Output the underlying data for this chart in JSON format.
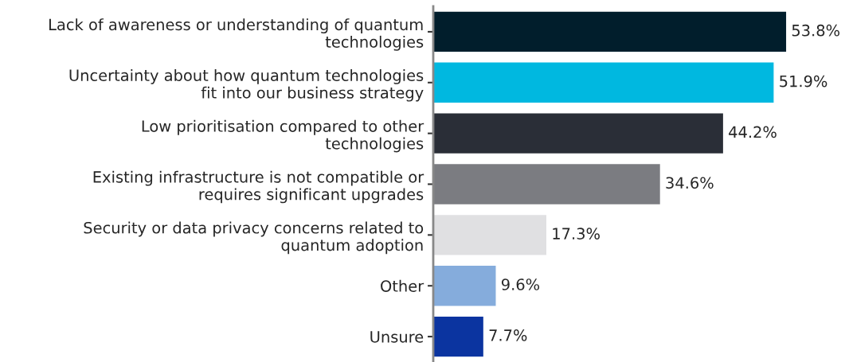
{
  "chart_data": {
    "type": "bar",
    "orientation": "horizontal",
    "value_labels": [
      "53.8%",
      "51.9%",
      "44.2%",
      "34.6%",
      "17.3%",
      "9.6%",
      "7.7%"
    ],
    "grid": false,
    "legend": false,
    "tick_labels": "y",
    "categories": [
      "Lack of awareness or understanding of quantum\ntechnologies",
      "Uncertainty about how quantum technologies\nfit into our business strategy",
      "Low prioritisation compared to other\ntechnologies",
      "Existing infrastructure is not compatible or\nrequires significant upgrades",
      "Security or data privacy concerns related to\nquantum adoption",
      "Other",
      "Unsure"
    ],
    "values": [
      53.8,
      51.9,
      44.2,
      34.6,
      17.3,
      9.6,
      7.7
    ],
    "colors": [
      "#011e2c",
      "#00b8e0",
      "#2a2e37",
      "#7b7c81",
      "#e0e0e2",
      "#85acdc",
      "#0b34a0"
    ]
  }
}
